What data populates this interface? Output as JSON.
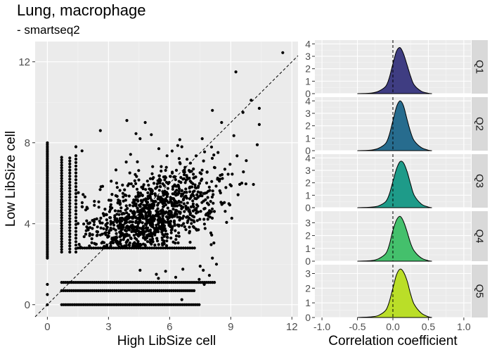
{
  "title": "Lung, macrophage",
  "subtitle": "- smartseq2",
  "chart_data": [
    {
      "type": "scatter",
      "xlabel": "High LibSize cell",
      "ylabel": "Low LibSize cell",
      "xlim": [
        -0.6,
        12.3
      ],
      "ylim": [
        -0.6,
        13.0
      ],
      "xticks": [
        0,
        3,
        6,
        9,
        12
      ],
      "yticks": [
        0,
        4,
        8,
        12
      ],
      "reference_line": {
        "type": "identity",
        "style": "dashed"
      },
      "grid": true,
      "point_color": "#000000",
      "points": [
        [
          11.55,
          12.45
        ],
        [
          9.25,
          11.5
        ],
        [
          10.0,
          10.1
        ],
        [
          10.4,
          9.7
        ],
        [
          10.4,
          8.9
        ],
        [
          9.6,
          9.5
        ],
        [
          8.1,
          9.6
        ],
        [
          8.55,
          9.0
        ],
        [
          4.8,
          9.0
        ],
        [
          3.9,
          9.1
        ],
        [
          2.6,
          8.6
        ],
        [
          5.1,
          8.4
        ],
        [
          4.35,
          8.45
        ],
        [
          4.55,
          8.2
        ],
        [
          6.5,
          8.15
        ],
        [
          7.6,
          8.2
        ],
        [
          10.3,
          7.9
        ],
        [
          9.15,
          8.35
        ],
        [
          1.4,
          7.8
        ],
        [
          1.7,
          7.6
        ],
        [
          6.6,
          7.8
        ],
        [
          7.3,
          7.35
        ],
        [
          8.1,
          2.3
        ],
        [
          8.3,
          2.0
        ],
        [
          7.5,
          1.9
        ],
        [
          7.65,
          1.7
        ],
        [
          7.95,
          1.45
        ],
        [
          7.45,
          1.25
        ],
        [
          6.3,
          1.35
        ],
        [
          5.35,
          1.5
        ],
        [
          5.45,
          1.3
        ],
        [
          4.55,
          1.7
        ],
        [
          5.8,
          1.65
        ],
        [
          6.65,
          1.75
        ],
        [
          7.7,
          1.0
        ],
        [
          6.6,
          0.25
        ]
      ]
    },
    {
      "type": "area",
      "subtype": "density-ridges",
      "xlabel": "Correlation coefficient",
      "xlim": [
        -1.1,
        1.1
      ],
      "xticks": [
        -1.0,
        -0.5,
        0.0,
        0.5,
        1.0
      ],
      "xtick_labels": [
        "-1.0",
        "-0.5",
        "0.0",
        "0.5",
        "1.0"
      ],
      "reference_line": {
        "x": 0,
        "style": "dashed"
      },
      "series": [
        {
          "name": "Q1",
          "color": "#3f3d82",
          "ylim": [
            0,
            4.3
          ],
          "yticks": [
            0,
            1,
            2,
            3,
            4
          ],
          "x": [
            -0.5,
            -0.3,
            -0.2,
            -0.1,
            -0.05,
            0.0,
            0.05,
            0.1,
            0.15,
            0.2,
            0.25,
            0.3,
            0.4,
            0.5,
            0.55
          ],
          "y": [
            0,
            0.05,
            0.2,
            0.6,
            1.3,
            2.4,
            3.4,
            3.7,
            3.2,
            2.3,
            1.4,
            0.7,
            0.2,
            0.03,
            0
          ]
        },
        {
          "name": "Q2",
          "color": "#276c8e",
          "ylim": [
            0,
            4.3
          ],
          "yticks": [
            0,
            1,
            2,
            3,
            4
          ],
          "x": [
            -0.5,
            -0.3,
            -0.2,
            -0.1,
            -0.05,
            0.0,
            0.05,
            0.1,
            0.15,
            0.2,
            0.25,
            0.3,
            0.4,
            0.5,
            0.55
          ],
          "y": [
            0,
            0.05,
            0.2,
            0.6,
            1.3,
            2.4,
            3.5,
            4.0,
            3.6,
            2.5,
            1.5,
            0.8,
            0.25,
            0.04,
            0
          ]
        },
        {
          "name": "Q3",
          "color": "#1e9b89",
          "ylim": [
            0,
            4.3
          ],
          "yticks": [
            0,
            1,
            2,
            3,
            4
          ],
          "x": [
            -0.5,
            -0.3,
            -0.2,
            -0.1,
            -0.05,
            0.0,
            0.05,
            0.1,
            0.15,
            0.2,
            0.25,
            0.3,
            0.4,
            0.5,
            0.55
          ],
          "y": [
            0,
            0.05,
            0.15,
            0.5,
            1.1,
            2.1,
            3.1,
            3.7,
            3.6,
            2.9,
            1.9,
            1.0,
            0.3,
            0.05,
            0
          ]
        },
        {
          "name": "Q4",
          "color": "#44c06c",
          "ylim": [
            0,
            3.9
          ],
          "yticks": [
            0,
            1,
            2,
            3
          ],
          "x": [
            -0.5,
            -0.3,
            -0.2,
            -0.1,
            -0.05,
            0.0,
            0.05,
            0.1,
            0.15,
            0.2,
            0.25,
            0.3,
            0.4,
            0.5,
            0.55
          ],
          "y": [
            0,
            0.05,
            0.2,
            0.6,
            1.3,
            2.4,
            3.2,
            3.5,
            3.1,
            2.3,
            1.4,
            0.8,
            0.25,
            0.04,
            0
          ]
        },
        {
          "name": "Q5",
          "color": "#bade28",
          "ylim": [
            0,
            3.6
          ],
          "yticks": [
            0,
            1,
            2,
            3
          ],
          "x": [
            -0.5,
            -0.3,
            -0.2,
            -0.1,
            -0.05,
            0.0,
            0.05,
            0.1,
            0.15,
            0.2,
            0.25,
            0.3,
            0.4,
            0.5,
            0.55
          ],
          "y": [
            0,
            0.05,
            0.15,
            0.5,
            1.1,
            2.0,
            2.9,
            3.3,
            3.1,
            2.5,
            1.6,
            0.9,
            0.3,
            0.05,
            0
          ]
        }
      ]
    }
  ]
}
